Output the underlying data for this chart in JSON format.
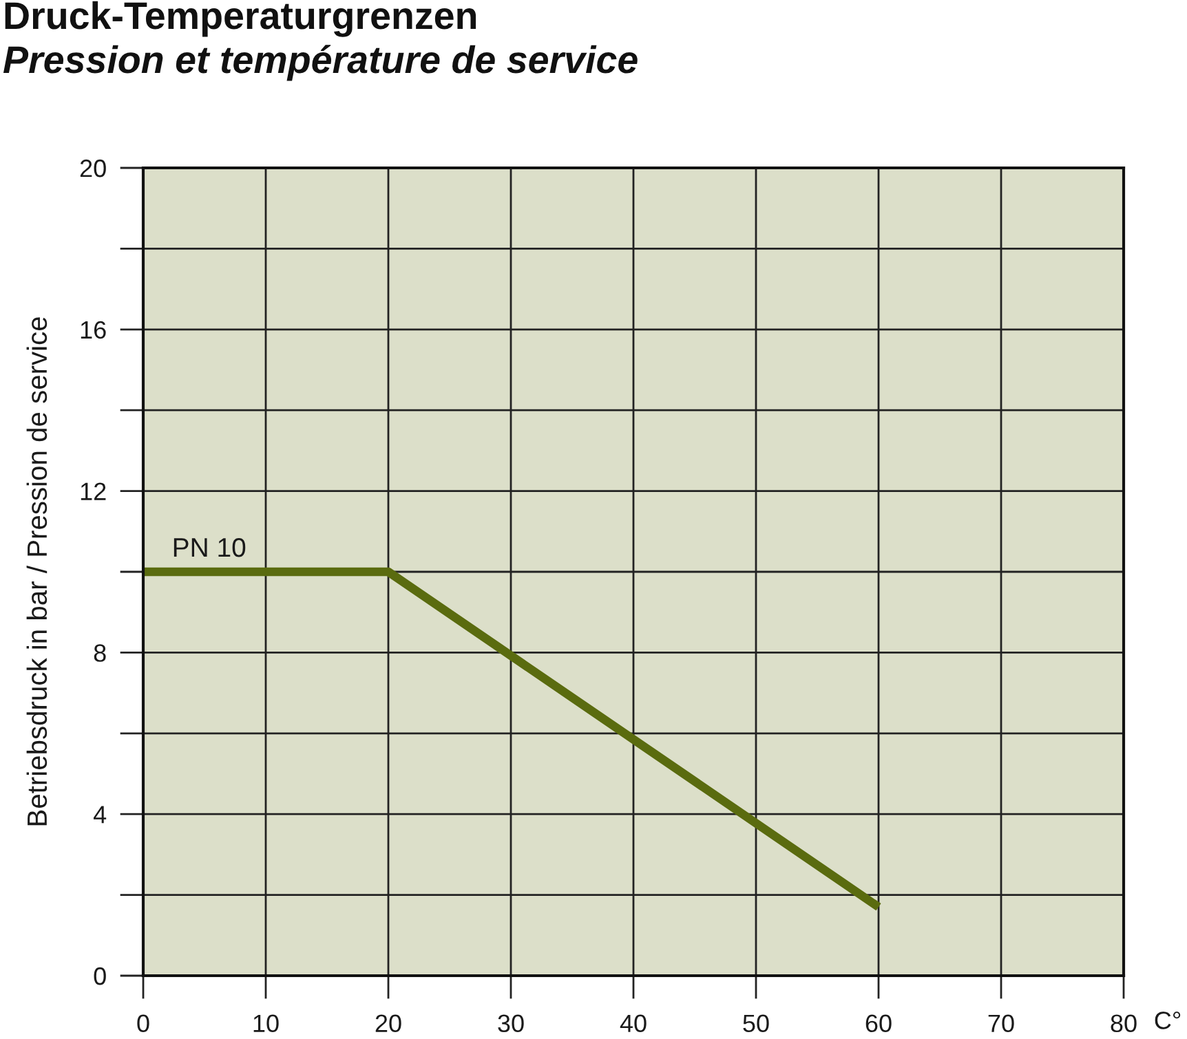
{
  "chart_data": {
    "type": "line",
    "title": "Druck-Temperaturgrenzen",
    "subtitle": "Pression et température de service",
    "xlabel": "C°",
    "ylabel": "Betriebsdruck in bar / Pression de service",
    "x": [
      0,
      20,
      60
    ],
    "series": [
      {
        "name": "PN 10",
        "color": "#5a6b0f",
        "values": [
          10,
          10,
          1.7
        ]
      }
    ],
    "xlim": [
      0,
      80
    ],
    "ylim": [
      0,
      20
    ],
    "xticks": [
      0,
      10,
      20,
      30,
      40,
      50,
      60,
      70,
      80
    ],
    "yticks": [
      0,
      {
        "value": 2,
        "label": null
      },
      4,
      {
        "value": 6,
        "label": null
      },
      8,
      {
        "value": 10,
        "label": null
      },
      12,
      {
        "value": 14,
        "label": null
      },
      16,
      {
        "value": 18,
        "label": null
      },
      20
    ],
    "grid": true
  }
}
